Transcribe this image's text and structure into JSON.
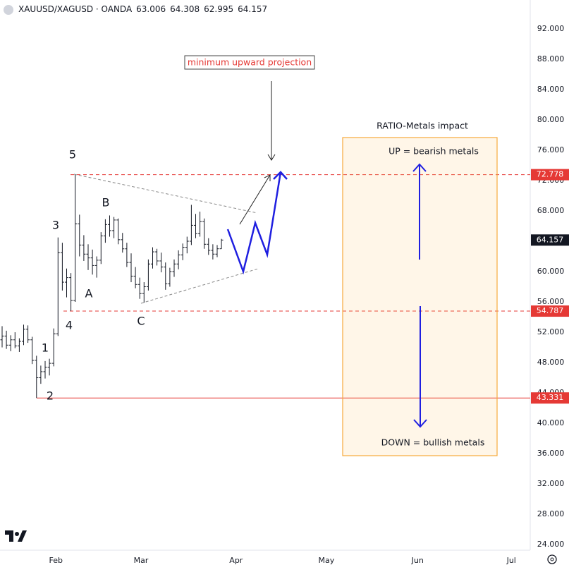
{
  "chart_data": {
    "type": "ohlc",
    "title": "XAUUSD/XAGUSD · OANDA",
    "color": "#131722",
    "open": [
      51.0,
      51.5,
      50.3,
      51.0,
      50.2,
      50.8,
      52.4,
      51.0,
      48.3,
      46.0,
      46.8,
      47.4,
      47.9,
      51.8,
      62.5,
      58.6,
      59.2,
      56.2,
      66.3,
      63.5,
      62.3,
      61.8,
      60.8,
      61.5,
      64.7,
      66.2,
      65.4,
      66.8,
      64.2,
      63.0,
      61.2,
      59.4,
      58.3,
      57.1,
      58.0,
      61.0,
      62.6,
      61.4,
      60.6,
      58.4,
      60.0,
      61.0,
      62.2,
      63.2,
      64.0,
      66.1,
      65.0,
      66.6,
      63.6,
      62.8,
      62.3,
      63.006
    ],
    "high": [
      52.8,
      52.2,
      51.6,
      52.0,
      51.2,
      53.0,
      52.9,
      51.4,
      48.9,
      47.6,
      48.2,
      48.5,
      52.5,
      64.5,
      63.8,
      60.4,
      59.8,
      72.778,
      67.5,
      64.8,
      63.6,
      62.9,
      62.0,
      65.2,
      66.9,
      67.4,
      67.2,
      67.0,
      65.1,
      63.8,
      62.4,
      60.6,
      59.2,
      58.6,
      61.6,
      63.2,
      63.0,
      62.5,
      61.2,
      60.5,
      61.6,
      62.8,
      63.7,
      64.6,
      68.8,
      67.6,
      67.9,
      67.0,
      64.4,
      63.6,
      63.5,
      64.308
    ],
    "low": [
      50.0,
      49.8,
      49.5,
      49.9,
      49.4,
      50.3,
      50.6,
      47.8,
      43.331,
      45.2,
      45.9,
      46.3,
      47.5,
      51.5,
      57.5,
      56.6,
      54.787,
      56.0,
      62.0,
      61.4,
      60.2,
      59.6,
      59.2,
      61.0,
      63.8,
      64.6,
      64.4,
      63.6,
      62.5,
      60.6,
      58.6,
      57.8,
      56.4,
      55.9,
      57.5,
      60.4,
      60.8,
      59.9,
      57.6,
      58.0,
      59.3,
      60.3,
      61.5,
      62.4,
      63.5,
      64.4,
      64.6,
      63.0,
      62.2,
      61.6,
      61.9,
      62.995
    ],
    "close": [
      51.5,
      50.3,
      51.0,
      50.2,
      50.8,
      52.4,
      51.0,
      48.3,
      46.0,
      46.8,
      47.4,
      47.9,
      51.8,
      62.5,
      58.6,
      59.2,
      56.2,
      66.3,
      63.5,
      62.3,
      61.8,
      60.8,
      61.5,
      64.7,
      66.2,
      65.4,
      66.8,
      64.2,
      63.0,
      61.2,
      59.4,
      58.3,
      57.1,
      58.0,
      61.0,
      62.6,
      61.4,
      60.6,
      58.4,
      60.0,
      61.0,
      62.2,
      63.2,
      64.0,
      66.1,
      65.0,
      66.6,
      63.6,
      62.8,
      62.3,
      63.006,
      64.157
    ],
    "xlim": [
      -0.49,
      122.79
    ],
    "xticks": [
      {
        "value": 12.5,
        "label": "Feb"
      },
      {
        "value": 32.3,
        "label": "Mar"
      },
      {
        "value": 54.4,
        "label": "Apr"
      },
      {
        "value": 75.4,
        "label": "May"
      },
      {
        "value": 96.6,
        "label": "Jun"
      },
      {
        "value": 118.4,
        "label": "Jul"
      }
    ],
    "ylim": [
      23.26,
      95.81
    ],
    "yticks": [
      {
        "value": 24,
        "label": "24.000"
      },
      {
        "value": 28,
        "label": "28.000"
      },
      {
        "value": 32,
        "label": "32.000"
      },
      {
        "value": 36,
        "label": "36.000"
      },
      {
        "value": 40,
        "label": "40.000"
      },
      {
        "value": 44,
        "label": "44.000"
      },
      {
        "value": 48,
        "label": "48.000"
      },
      {
        "value": 52,
        "label": "52.000"
      },
      {
        "value": 56,
        "label": "56.000"
      },
      {
        "value": 60,
        "label": "60.000"
      },
      {
        "value": 64,
        "label": "64.000"
      },
      {
        "value": 68,
        "label": "68.000"
      },
      {
        "value": 72,
        "label": "72.000"
      },
      {
        "value": 76,
        "label": "76.000"
      },
      {
        "value": 80,
        "label": "80.000"
      },
      {
        "value": 84,
        "label": "84.000"
      },
      {
        "value": 88,
        "label": "88.000"
      },
      {
        "value": 92,
        "label": "92.000"
      }
    ],
    "grid": false,
    "levels": [
      {
        "value": 72.778,
        "color": "#e53935",
        "dashed": true
      },
      {
        "value": 54.787,
        "color": "#e53935",
        "dashed": true
      },
      {
        "value": 43.331,
        "color": "#e53935",
        "dashed": false
      }
    ],
    "wave_labels": [
      "1",
      "2",
      "3",
      "4",
      "5",
      "A",
      "B",
      "C"
    ],
    "annotations": [
      "minimum upward projection",
      "RATIO-Metals impact",
      "UP = bearish metals",
      "DOWN = bullish metals"
    ]
  }
}
